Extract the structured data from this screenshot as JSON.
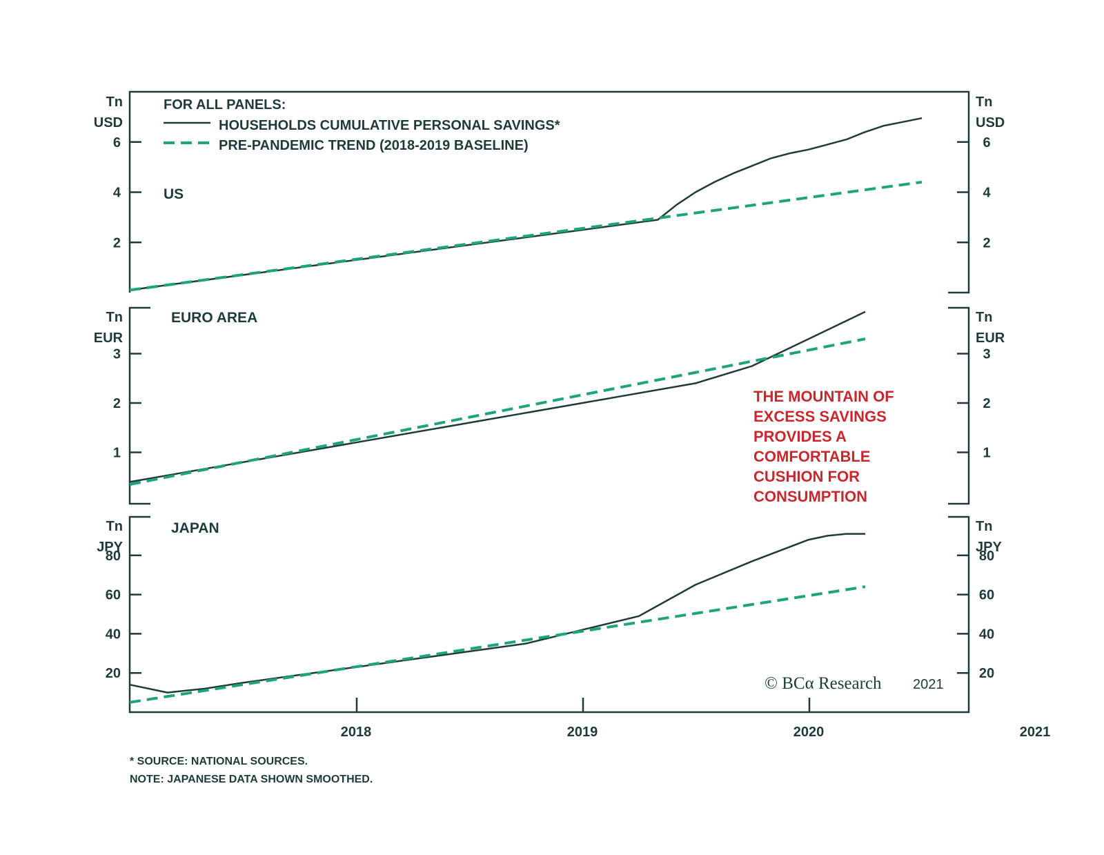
{
  "legend": {
    "heading": "FOR ALL PANELS:",
    "actual": "HOUSEHOLDS CUMULATIVE PERSONAL SAVINGS*",
    "trend": "PRE-PANDEMIC TREND (2018-2019 BASELINE)"
  },
  "annotation": [
    "THE MOUNTAIN OF",
    "EXCESS SAVINGS",
    "PROVIDES A",
    "COMFORTABLE",
    "CUSHION FOR",
    "CONSUMPTION"
  ],
  "footnotes": {
    "source": "* SOURCE: NATIONAL SOURCES.",
    "note": "NOTE: JAPANESE DATA SHOWN SMOOTHED."
  },
  "logo": {
    "text": "© BCα Research",
    "year": "2021"
  },
  "colors": {
    "actual": "#1f3a3a",
    "trend": "#1ea37a",
    "annotation": "#c8282d"
  },
  "chart_data": [
    {
      "type": "line",
      "title": "US",
      "unit": [
        "Tn",
        "USD"
      ],
      "ylim": [
        0,
        8
      ],
      "yticks": [
        2,
        4,
        6
      ],
      "x_ticks": [
        "2018",
        "2019",
        "2020",
        "2021"
      ],
      "series": [
        {
          "name": "HOUSEHOLDS CUMULATIVE PERSONAL SAVINGS*",
          "style": "solid",
          "x": [
            "2017-07",
            "2017-10",
            "2018-01",
            "2018-04",
            "2018-07",
            "2018-10",
            "2019-01",
            "2019-04",
            "2019-07",
            "2019-10",
            "2019-11",
            "2019-12",
            "2020-01",
            "2020-02",
            "2020-03",
            "2020-04",
            "2020-05",
            "2020-06",
            "2020-07",
            "2020-08",
            "2020-09",
            "2020-10",
            "2020-11",
            "2020-12",
            "2021-01"
          ],
          "values": [
            0.1,
            0.4,
            0.7,
            1.0,
            1.3,
            1.6,
            1.9,
            2.2,
            2.5,
            2.8,
            2.9,
            3.5,
            4.0,
            4.4,
            4.75,
            5.05,
            5.35,
            5.55,
            5.7,
            5.9,
            6.1,
            6.4,
            6.65,
            6.8,
            6.95
          ]
        },
        {
          "name": "PRE-PANDEMIC TREND (2018-2019 BASELINE)",
          "style": "dashed",
          "x": [
            "2017-07",
            "2021-01"
          ],
          "values": [
            0.1,
            4.4
          ]
        }
      ]
    },
    {
      "type": "line",
      "title": "EURO AREA",
      "unit": [
        "Tn",
        "EUR"
      ],
      "ylim": [
        0,
        4
      ],
      "yticks": [
        1,
        2,
        3
      ],
      "x_ticks": [
        "2018",
        "2019",
        "2020",
        "2021"
      ],
      "series": [
        {
          "name": "HOUSEHOLDS CUMULATIVE PERSONAL SAVINGS*",
          "style": "solid",
          "x": [
            "2017-07",
            "2018-01",
            "2018-07",
            "2019-01",
            "2019-07",
            "2020-01",
            "2020-04",
            "2020-07",
            "2020-10"
          ],
          "values": [
            0.4,
            0.8,
            1.2,
            1.6,
            2.0,
            2.4,
            2.75,
            3.3,
            3.85
          ]
        },
        {
          "name": "PRE-PANDEMIC TREND (2018-2019 BASELINE)",
          "style": "dashed",
          "x": [
            "2017-07",
            "2020-10"
          ],
          "values": [
            0.35,
            3.3
          ]
        }
      ]
    },
    {
      "type": "line",
      "title": "JAPAN",
      "unit": [
        "Tn",
        "JPY"
      ],
      "ylim": [
        0,
        100
      ],
      "yticks": [
        20,
        40,
        60,
        80
      ],
      "x_ticks": [
        "2018",
        "2019",
        "2020",
        "2021"
      ],
      "series": [
        {
          "name": "HOUSEHOLDS CUMULATIVE PERSONAL SAVINGS*",
          "style": "solid",
          "x": [
            "2017-07",
            "2017-09",
            "2017-11",
            "2018-01",
            "2018-04",
            "2018-07",
            "2018-10",
            "2019-01",
            "2019-04",
            "2019-07",
            "2019-10",
            "2020-01",
            "2020-04",
            "2020-07",
            "2020-08",
            "2020-09",
            "2020-10"
          ],
          "values": [
            14,
            10,
            12,
            15,
            19,
            23,
            27,
            31,
            35,
            42,
            49,
            65,
            77,
            88,
            90,
            91,
            91
          ]
        },
        {
          "name": "PRE-PANDEMIC TREND (2018-2019 BASELINE)",
          "style": "dashed",
          "x": [
            "2017-07",
            "2020-10"
          ],
          "values": [
            5,
            64
          ]
        }
      ]
    }
  ]
}
